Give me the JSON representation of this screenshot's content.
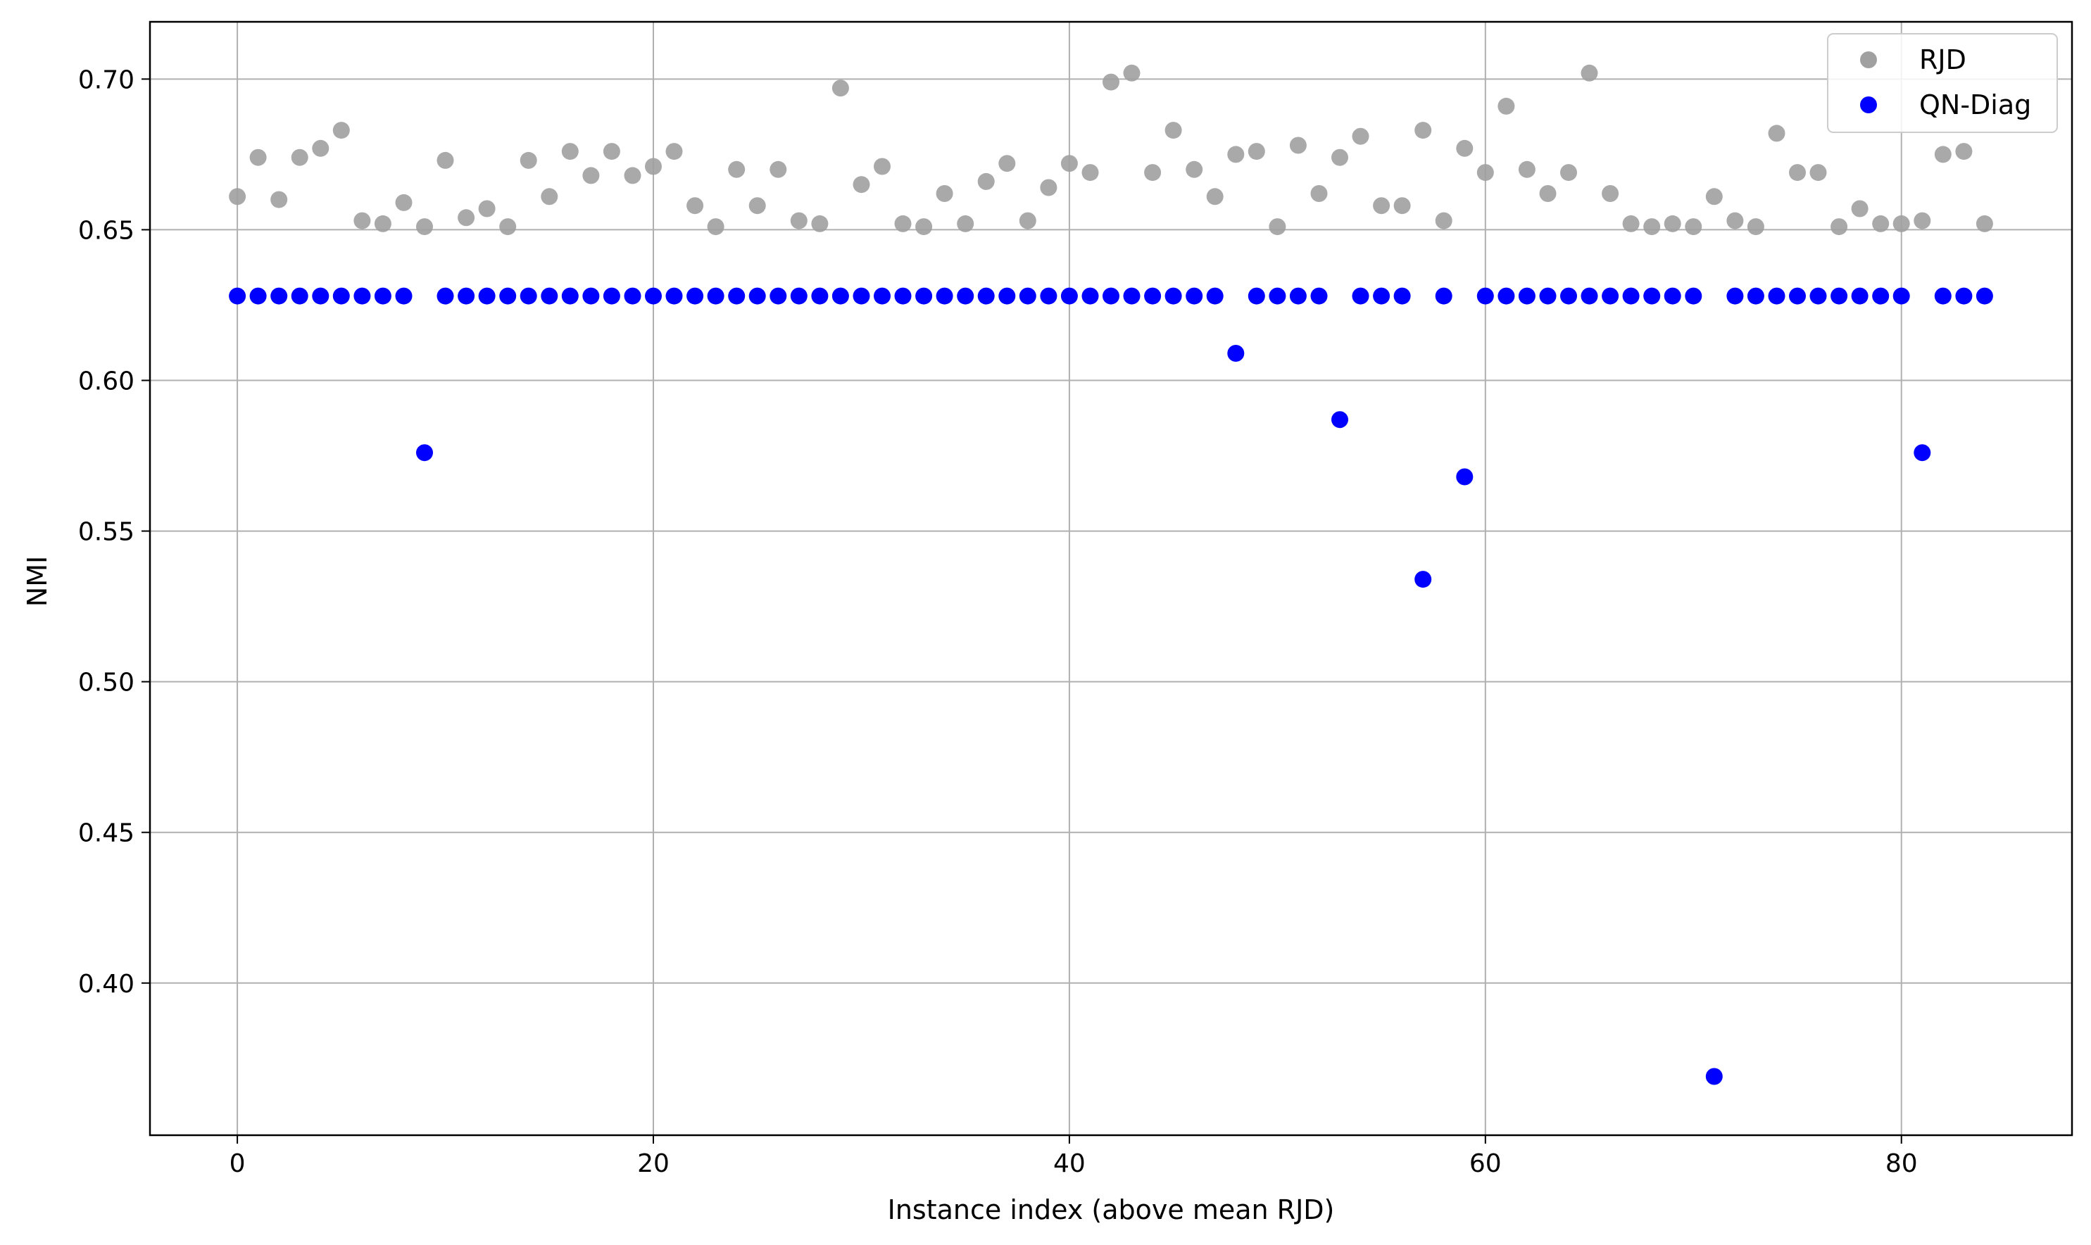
{
  "chart_data": {
    "type": "scatter",
    "title": "",
    "xlabel": "Instance index (above mean RJD)",
    "ylabel": "NMI",
    "xlim": [
      -4.2,
      88.2
    ],
    "ylim": [
      0.3495,
      0.719
    ],
    "xticks": [
      0,
      20,
      40,
      60,
      80
    ],
    "yticks": [
      0.4,
      0.45,
      0.5,
      0.55,
      0.6,
      0.65,
      0.7
    ],
    "ytick_labels": [
      "0.40",
      "0.45",
      "0.50",
      "0.55",
      "0.60",
      "0.65",
      "0.70"
    ],
    "grid": true,
    "legend_position": "top-right",
    "series": [
      {
        "name": "RJD",
        "color": "#a0a0a0",
        "x": [
          0,
          1,
          2,
          3,
          4,
          5,
          6,
          7,
          8,
          9,
          10,
          11,
          12,
          13,
          14,
          15,
          16,
          17,
          18,
          19,
          20,
          21,
          22,
          23,
          24,
          25,
          26,
          27,
          28,
          29,
          30,
          31,
          32,
          33,
          34,
          35,
          36,
          37,
          38,
          39,
          40,
          41,
          42,
          43,
          44,
          45,
          46,
          47,
          48,
          49,
          50,
          51,
          52,
          53,
          54,
          55,
          56,
          57,
          58,
          59,
          60,
          61,
          62,
          63,
          64,
          65,
          66,
          67,
          68,
          69,
          70,
          71,
          72,
          73,
          74,
          75,
          76,
          77,
          78,
          79,
          80,
          81,
          82,
          83,
          84
        ],
        "y": [
          0.661,
          0.674,
          0.66,
          0.674,
          0.677,
          0.683,
          0.653,
          0.652,
          0.659,
          0.651,
          0.673,
          0.654,
          0.657,
          0.651,
          0.673,
          0.661,
          0.676,
          0.668,
          0.676,
          0.668,
          0.671,
          0.676,
          0.658,
          0.651,
          0.67,
          0.658,
          0.67,
          0.653,
          0.652,
          0.697,
          0.665,
          0.671,
          0.652,
          0.651,
          0.662,
          0.652,
          0.666,
          0.672,
          0.653,
          0.664,
          0.672,
          0.669,
          0.699,
          0.702,
          0.669,
          0.683,
          0.67,
          0.661,
          0.675,
          0.676,
          0.651,
          0.678,
          0.662,
          0.674,
          0.681,
          0.658,
          0.658,
          0.683,
          0.653,
          0.677,
          0.669,
          0.691,
          0.67,
          0.662,
          0.669,
          0.702,
          0.662,
          0.652,
          0.651,
          0.652,
          0.651,
          0.661,
          0.653,
          0.651,
          0.682,
          0.669,
          0.669,
          0.651,
          0.657,
          0.652,
          0.652,
          0.653,
          0.675,
          0.676,
          0.652
        ]
      },
      {
        "name": "QN-Diag",
        "color": "#0000ff",
        "x": [
          0,
          1,
          2,
          3,
          4,
          5,
          6,
          7,
          8,
          9,
          10,
          11,
          12,
          13,
          14,
          15,
          16,
          17,
          18,
          19,
          20,
          21,
          22,
          23,
          24,
          25,
          26,
          27,
          28,
          29,
          30,
          31,
          32,
          33,
          34,
          35,
          36,
          37,
          38,
          39,
          40,
          41,
          42,
          43,
          44,
          45,
          46,
          47,
          48,
          49,
          50,
          51,
          52,
          53,
          54,
          55,
          56,
          57,
          58,
          59,
          60,
          61,
          62,
          63,
          64,
          65,
          66,
          67,
          68,
          69,
          70,
          71,
          72,
          73,
          74,
          75,
          76,
          77,
          78,
          79,
          80,
          81,
          82,
          83,
          84
        ],
        "y": [
          0.628,
          0.628,
          0.628,
          0.628,
          0.628,
          0.628,
          0.628,
          0.628,
          0.628,
          0.576,
          0.628,
          0.628,
          0.628,
          0.628,
          0.628,
          0.628,
          0.628,
          0.628,
          0.628,
          0.628,
          0.628,
          0.628,
          0.628,
          0.628,
          0.628,
          0.628,
          0.628,
          0.628,
          0.628,
          0.628,
          0.628,
          0.628,
          0.628,
          0.628,
          0.628,
          0.628,
          0.628,
          0.628,
          0.628,
          0.628,
          0.628,
          0.628,
          0.628,
          0.628,
          0.628,
          0.628,
          0.628,
          0.628,
          0.609,
          0.628,
          0.628,
          0.628,
          0.628,
          0.587,
          0.628,
          0.628,
          0.628,
          0.534,
          0.628,
          0.568,
          0.628,
          0.628,
          0.628,
          0.628,
          0.628,
          0.628,
          0.628,
          0.628,
          0.628,
          0.628,
          0.628,
          0.369,
          0.628,
          0.628,
          0.628,
          0.628,
          0.628,
          0.628,
          0.628,
          0.628,
          0.628,
          0.576,
          0.628,
          0.628,
          0.628
        ]
      }
    ]
  }
}
